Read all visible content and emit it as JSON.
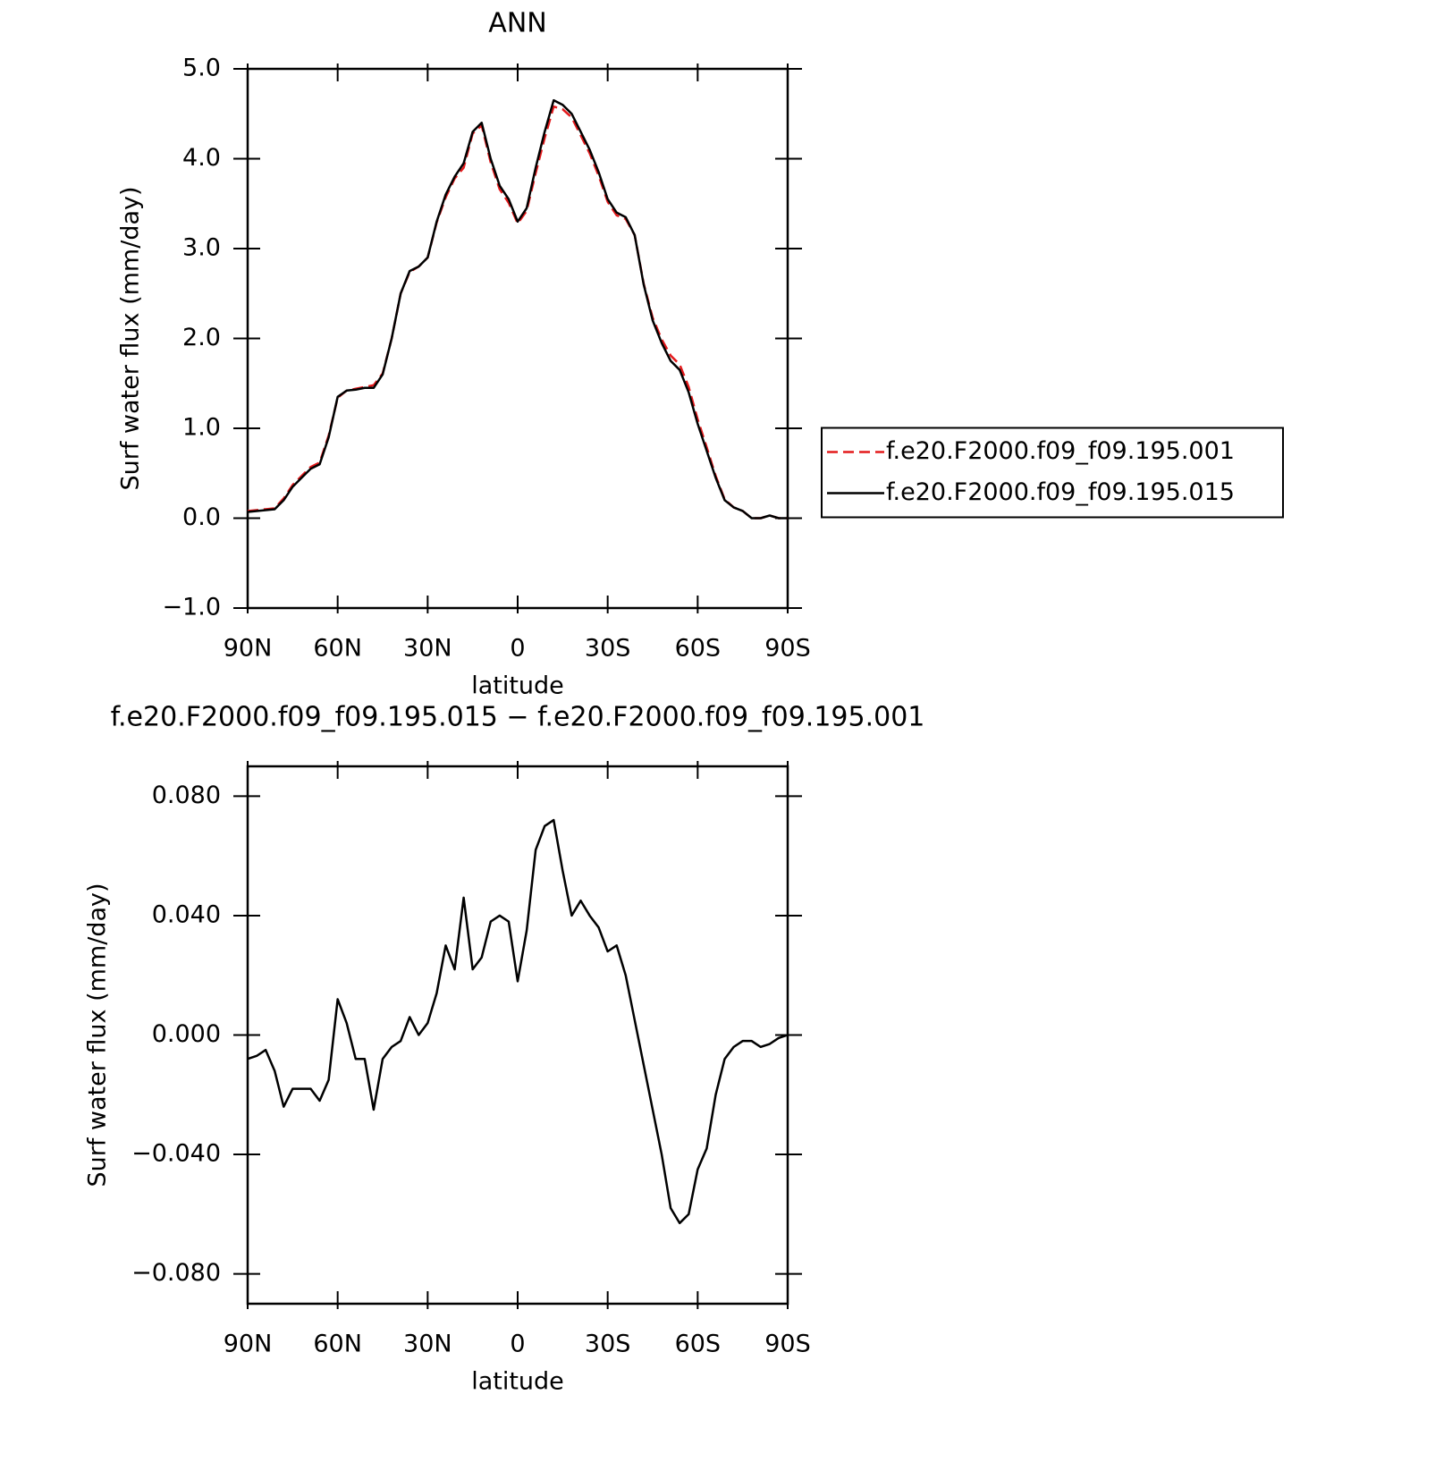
{
  "chart_data": [
    {
      "type": "line",
      "title": "ANN",
      "xlabel": "latitude",
      "ylabel": "Surf water flux (mm/day)",
      "x": [
        90,
        87,
        84,
        81,
        78,
        75,
        72,
        69,
        66,
        63,
        60,
        57,
        54,
        51,
        48,
        45,
        42,
        39,
        36,
        33,
        30,
        27,
        24,
        21,
        18,
        15,
        12,
        9,
        6,
        3,
        0,
        -3,
        -6,
        -9,
        -12,
        -15,
        -18,
        -21,
        -24,
        -27,
        -30,
        -33,
        -36,
        -39,
        -42,
        -45,
        -48,
        -51,
        -54,
        -57,
        -60,
        -63,
        -66,
        -69,
        -72,
        -75,
        -78,
        -81,
        -84,
        -87,
        -90
      ],
      "series": [
        {
          "name": "f.e20.F2000.f09_f09.195.001",
          "color": "#e41a1c",
          "style": "dashed",
          "values": [
            0.08,
            0.09,
            0.1,
            0.11,
            0.22,
            0.37,
            0.47,
            0.57,
            0.62,
            0.92,
            1.34,
            1.42,
            1.44,
            1.46,
            1.48,
            1.61,
            2.0,
            2.5,
            2.74,
            2.8,
            2.9,
            3.29,
            3.57,
            3.78,
            3.9,
            4.28,
            4.37,
            3.96,
            3.66,
            3.51,
            3.28,
            3.42,
            3.84,
            4.23,
            4.58,
            4.55,
            4.46,
            4.26,
            4.06,
            3.81,
            3.52,
            3.37,
            3.33,
            3.15,
            2.61,
            2.23,
            1.99,
            1.81,
            1.71,
            1.46,
            1.1,
            0.79,
            0.47,
            0.21,
            0.12,
            0.08,
            0.0,
            0.0,
            0.03,
            0.0,
            0.0
          ]
        },
        {
          "name": "f.e20.F2000.f09_f09.195.015",
          "color": "#000000",
          "style": "solid",
          "values": [
            0.07,
            0.08,
            0.09,
            0.1,
            0.2,
            0.35,
            0.45,
            0.55,
            0.6,
            0.9,
            1.35,
            1.42,
            1.43,
            1.45,
            1.45,
            1.6,
            2.0,
            2.5,
            2.75,
            2.8,
            2.9,
            3.3,
            3.6,
            3.8,
            3.95,
            4.3,
            4.4,
            4.0,
            3.7,
            3.55,
            3.3,
            3.45,
            3.9,
            4.3,
            4.65,
            4.6,
            4.5,
            4.3,
            4.1,
            3.85,
            3.55,
            3.4,
            3.35,
            3.15,
            2.6,
            2.2,
            1.95,
            1.75,
            1.65,
            1.4,
            1.05,
            0.75,
            0.45,
            0.2,
            0.12,
            0.08,
            0.0,
            0.0,
            0.03,
            0.0,
            0.0
          ]
        }
      ],
      "xlim": [
        90,
        -90
      ],
      "xticks": [
        {
          "value": 90,
          "label": "90N"
        },
        {
          "value": 60,
          "label": "60N"
        },
        {
          "value": 30,
          "label": "30N"
        },
        0,
        {
          "value": -30,
          "label": "30S"
        },
        {
          "value": -60,
          "label": "60S"
        },
        {
          "value": -90,
          "label": "90S"
        }
      ],
      "ylim": [
        -1.0,
        5.0
      ],
      "yticks": [
        {
          "value": -1,
          "label": "−1.0"
        },
        {
          "value": 0,
          "label": "0.0"
        },
        {
          "value": 1,
          "label": "1.0"
        },
        {
          "value": 2,
          "label": "2.0"
        },
        {
          "value": 3,
          "label": "3.0"
        },
        {
          "value": 4,
          "label": "4.0"
        },
        {
          "value": 5,
          "label": "5.0"
        }
      ],
      "legend": "outside-right"
    },
    {
      "type": "line",
      "title": "f.e20.F2000.f09_f09.195.015 − f.e20.F2000.f09_f09.195.001",
      "xlabel": "latitude",
      "ylabel": "Surf water flux (mm/day)",
      "x": [
        90,
        87,
        84,
        81,
        78,
        75,
        72,
        69,
        66,
        63,
        60,
        57,
        54,
        51,
        48,
        45,
        42,
        39,
        36,
        33,
        30,
        27,
        24,
        21,
        18,
        15,
        12,
        9,
        6,
        3,
        0,
        -3,
        -6,
        -9,
        -12,
        -15,
        -18,
        -21,
        -24,
        -27,
        -30,
        -33,
        -36,
        -39,
        -42,
        -45,
        -48,
        -51,
        -54,
        -57,
        -60,
        -63,
        -66,
        -69,
        -72,
        -75,
        -78,
        -81,
        -84,
        -87,
        -90
      ],
      "color": "#000000",
      "values": [
        -0.008,
        -0.007,
        -0.005,
        -0.012,
        -0.024,
        -0.018,
        -0.018,
        -0.018,
        -0.022,
        -0.015,
        0.012,
        0.004,
        -0.008,
        -0.008,
        -0.025,
        -0.008,
        -0.004,
        -0.002,
        0.006,
        0.0,
        0.004,
        0.014,
        0.03,
        0.022,
        0.046,
        0.022,
        0.026,
        0.038,
        0.04,
        0.038,
        0.018,
        0.035,
        0.062,
        0.07,
        0.072,
        0.055,
        0.04,
        0.045,
        0.04,
        0.036,
        0.028,
        0.03,
        0.02,
        0.005,
        -0.01,
        -0.025,
        -0.04,
        -0.058,
        -0.063,
        -0.06,
        -0.045,
        -0.038,
        -0.02,
        -0.008,
        -0.004,
        -0.002,
        -0.002,
        -0.004,
        -0.003,
        -0.001,
        0.0
      ],
      "xlim": [
        90,
        -90
      ],
      "xticks": [
        {
          "value": 90,
          "label": "90N"
        },
        {
          "value": 60,
          "label": "60N"
        },
        {
          "value": 30,
          "label": "30N"
        },
        0,
        {
          "value": -30,
          "label": "30S"
        },
        {
          "value": -60,
          "label": "60S"
        },
        {
          "value": -90,
          "label": "90S"
        }
      ],
      "ylim": [
        -0.09,
        0.09
      ],
      "yticks": [
        {
          "value": -0.08,
          "label": "−0.080"
        },
        {
          "value": -0.04,
          "label": "−0.040"
        },
        {
          "value": 0,
          "label": "0.000"
        },
        {
          "value": 0.04,
          "label": "0.040"
        },
        {
          "value": 0.08,
          "label": "0.080"
        }
      ]
    }
  ]
}
